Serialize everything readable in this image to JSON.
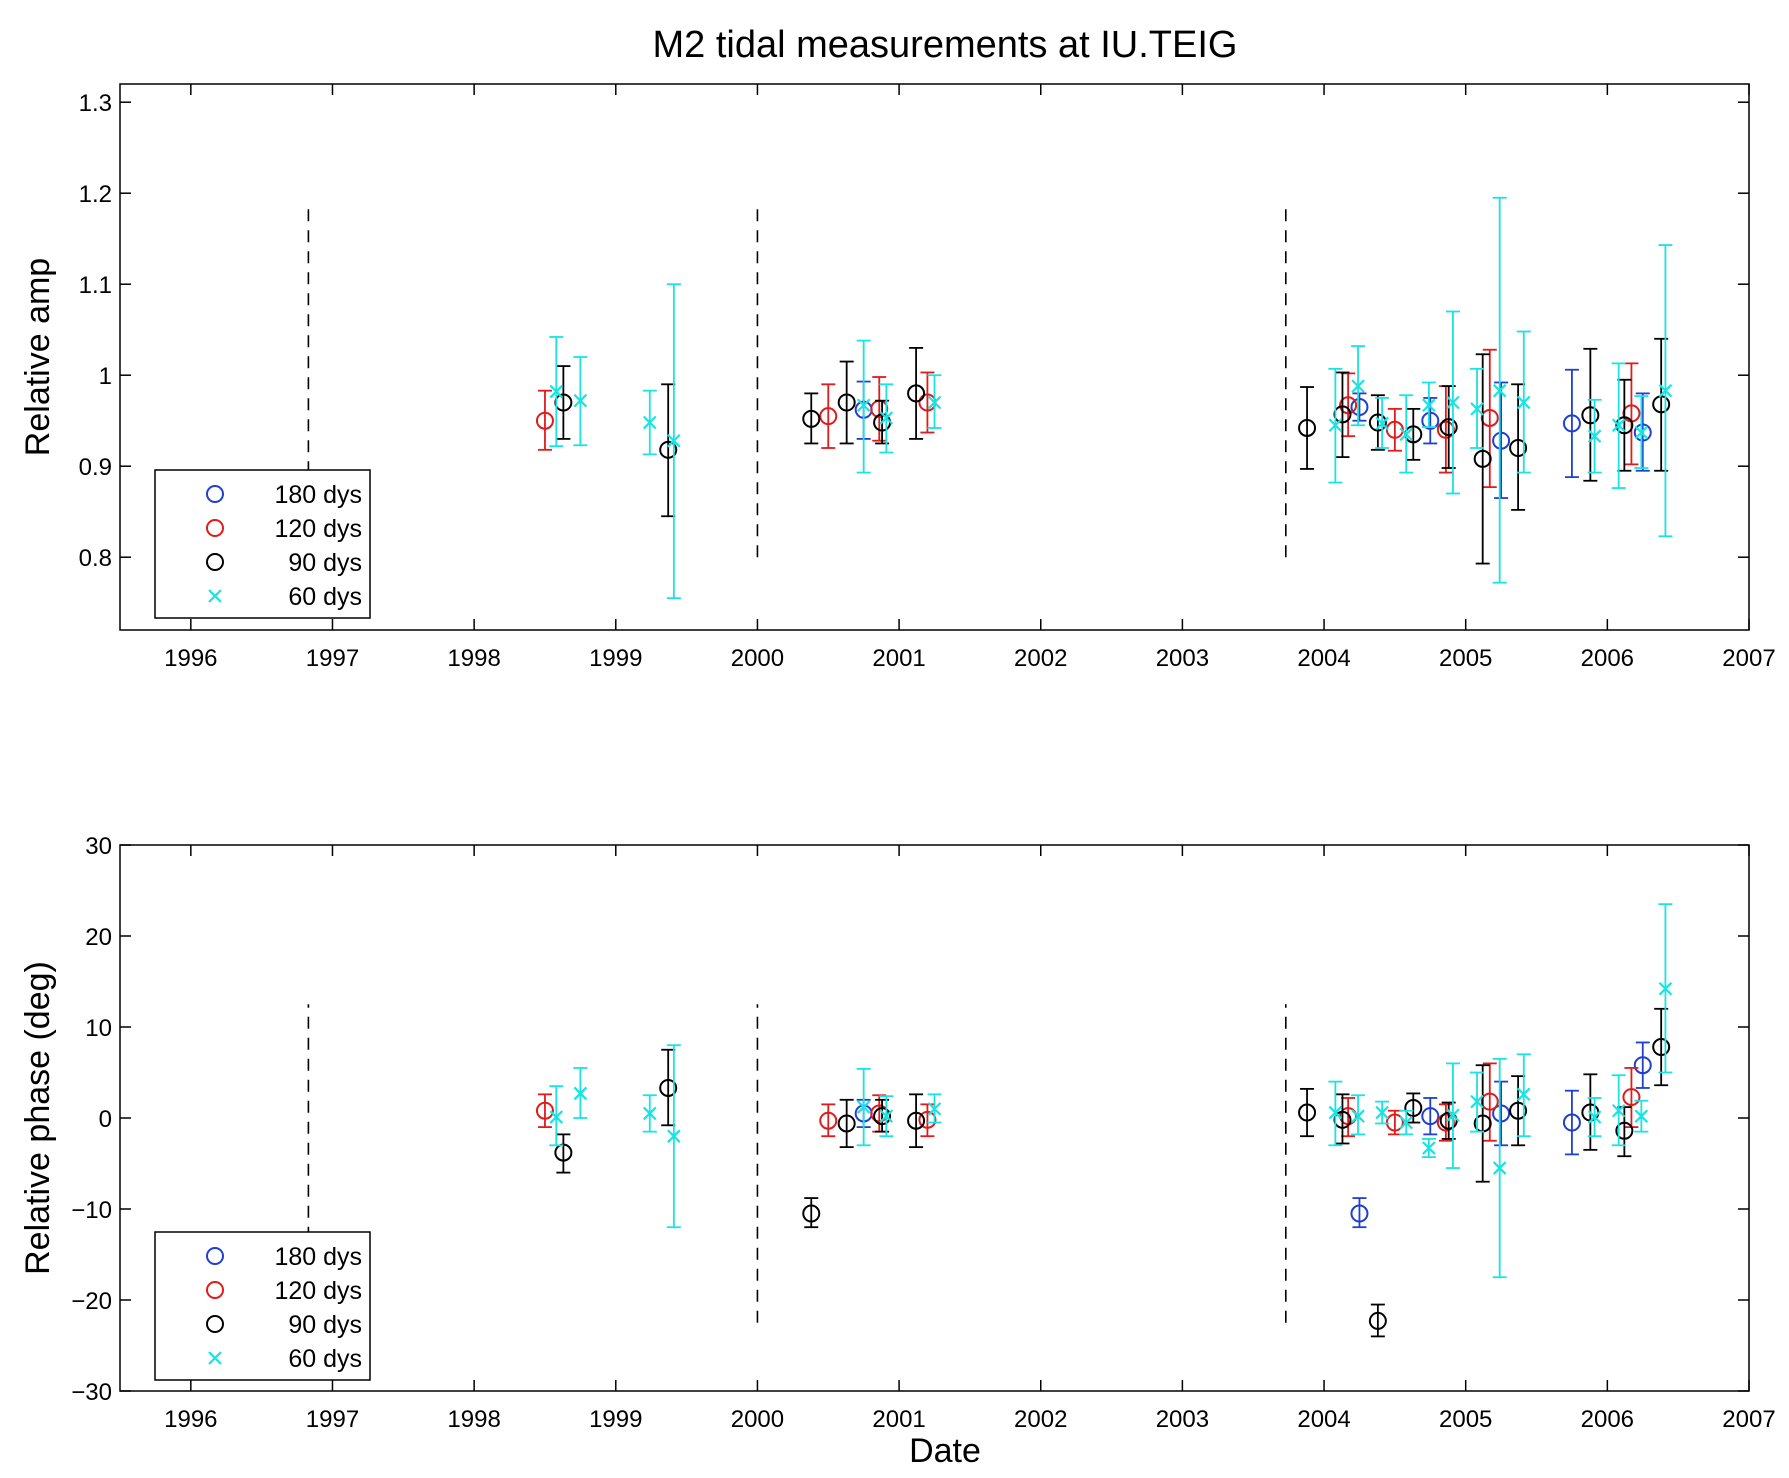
{
  "title": "M2 tidal measurements at IU.TEIG",
  "xlabel": "Date",
  "colors": {
    "180": "#1f3fcf",
    "120": "#e01b1b",
    "90": "#000000",
    "60": "#19e3e3"
  },
  "chart_data": [
    {
      "type": "scatter",
      "ylabel": "Relative amp",
      "xlim": [
        1995.5,
        2007
      ],
      "ylim": [
        0.72,
        1.32
      ],
      "x_ticks": [
        "1996",
        "1997",
        "1998",
        "1999",
        "2000",
        "2001",
        "2002",
        "2003",
        "2004",
        "2005",
        "2006",
        "2007"
      ],
      "y_ticks": [
        {
          "v": 0.8,
          "l": "0.8"
        },
        {
          "v": 0.9,
          "l": "0.9"
        },
        {
          "v": 1.0,
          "l": "1"
        },
        {
          "v": 1.1,
          "l": "1.1"
        },
        {
          "v": 1.2,
          "l": "1.2"
        },
        {
          "v": 1.3,
          "l": "1.3"
        }
      ],
      "vlines": [
        {
          "x": 1996.83,
          "y0": 0.8,
          "y1": 1.19
        },
        {
          "x": 2000.0,
          "y0": 0.8,
          "y1": 1.19
        },
        {
          "x": 2003.73,
          "y0": 0.8,
          "y1": 1.19
        }
      ],
      "legend": [
        "180 dys",
        "120 dys",
        "90 dys",
        "60 dys"
      ],
      "series": [
        {
          "name": "180 dys",
          "marker": "circle",
          "color_key": "180",
          "points": [
            {
              "x": 2000.75,
              "y": 0.962,
              "lo": 0.93,
              "hi": 0.993
            },
            {
              "x": 2004.25,
              "y": 0.965,
              "lo": 0.95,
              "hi": 0.98
            },
            {
              "x": 2004.75,
              "y": 0.95,
              "lo": 0.925,
              "hi": 0.975
            },
            {
              "x": 2005.25,
              "y": 0.928,
              "lo": 0.865,
              "hi": 0.992
            },
            {
              "x": 2005.75,
              "y": 0.947,
              "lo": 0.888,
              "hi": 1.006
            },
            {
              "x": 2006.25,
              "y": 0.937,
              "lo": 0.895,
              "hi": 0.98
            }
          ]
        },
        {
          "name": "120 dys",
          "marker": "circle",
          "color_key": "120",
          "points": [
            {
              "x": 1998.5,
              "y": 0.95,
              "lo": 0.918,
              "hi": 0.983
            },
            {
              "x": 2000.5,
              "y": 0.955,
              "lo": 0.92,
              "hi": 0.99
            },
            {
              "x": 2000.86,
              "y": 0.963,
              "lo": 0.928,
              "hi": 0.998
            },
            {
              "x": 2001.2,
              "y": 0.97,
              "lo": 0.937,
              "hi": 1.003
            },
            {
              "x": 2004.17,
              "y": 0.967,
              "lo": 0.933,
              "hi": 1.002
            },
            {
              "x": 2004.5,
              "y": 0.94,
              "lo": 0.917,
              "hi": 0.963
            },
            {
              "x": 2004.86,
              "y": 0.94,
              "lo": 0.893,
              "hi": 0.988
            },
            {
              "x": 2005.17,
              "y": 0.953,
              "lo": 0.877,
              "hi": 1.028
            },
            {
              "x": 2006.17,
              "y": 0.958,
              "lo": 0.902,
              "hi": 1.013
            }
          ]
        },
        {
          "name": "90 dys",
          "marker": "circle",
          "color_key": "90",
          "points": [
            {
              "x": 1998.63,
              "y": 0.97,
              "lo": 0.93,
              "hi": 1.01
            },
            {
              "x": 1999.37,
              "y": 0.918,
              "lo": 0.845,
              "hi": 0.99
            },
            {
              "x": 2000.38,
              "y": 0.952,
              "lo": 0.925,
              "hi": 0.98
            },
            {
              "x": 2000.63,
              "y": 0.97,
              "lo": 0.925,
              "hi": 1.015
            },
            {
              "x": 2000.88,
              "y": 0.948,
              "lo": 0.925,
              "hi": 0.972
            },
            {
              "x": 2001.12,
              "y": 0.98,
              "lo": 0.93,
              "hi": 1.03
            },
            {
              "x": 2003.88,
              "y": 0.942,
              "lo": 0.897,
              "hi": 0.987
            },
            {
              "x": 2004.13,
              "y": 0.957,
              "lo": 0.91,
              "hi": 1.003
            },
            {
              "x": 2004.38,
              "y": 0.948,
              "lo": 0.918,
              "hi": 0.978
            },
            {
              "x": 2004.63,
              "y": 0.935,
              "lo": 0.907,
              "hi": 0.963
            },
            {
              "x": 2004.88,
              "y": 0.943,
              "lo": 0.898,
              "hi": 0.988
            },
            {
              "x": 2005.12,
              "y": 0.908,
              "lo": 0.793,
              "hi": 1.023
            },
            {
              "x": 2005.37,
              "y": 0.92,
              "lo": 0.852,
              "hi": 0.99
            },
            {
              "x": 2005.88,
              "y": 0.956,
              "lo": 0.884,
              "hi": 1.029
            },
            {
              "x": 2006.12,
              "y": 0.945,
              "lo": 0.895,
              "hi": 0.995
            },
            {
              "x": 2006.38,
              "y": 0.968,
              "lo": 0.895,
              "hi": 1.04
            }
          ]
        },
        {
          "name": "60 dys",
          "marker": "x",
          "color_key": "60",
          "points": [
            {
              "x": 1998.58,
              "y": 0.982,
              "lo": 0.922,
              "hi": 1.042
            },
            {
              "x": 1998.75,
              "y": 0.972,
              "lo": 0.923,
              "hi": 1.02
            },
            {
              "x": 1999.24,
              "y": 0.948,
              "lo": 0.913,
              "hi": 0.983
            },
            {
              "x": 1999.41,
              "y": 0.928,
              "lo": 0.755,
              "hi": 1.1
            },
            {
              "x": 2000.75,
              "y": 0.967,
              "lo": 0.893,
              "hi": 1.038
            },
            {
              "x": 2000.91,
              "y": 0.953,
              "lo": 0.915,
              "hi": 0.99
            },
            {
              "x": 2001.25,
              "y": 0.97,
              "lo": 0.942,
              "hi": 1.0
            },
            {
              "x": 2004.08,
              "y": 0.945,
              "lo": 0.882,
              "hi": 1.007
            },
            {
              "x": 2004.24,
              "y": 0.988,
              "lo": 0.945,
              "hi": 1.032
            },
            {
              "x": 2004.41,
              "y": 0.947,
              "lo": 0.92,
              "hi": 0.975
            },
            {
              "x": 2004.58,
              "y": 0.935,
              "lo": 0.893,
              "hi": 0.978
            },
            {
              "x": 2004.74,
              "y": 0.967,
              "lo": 0.943,
              "hi": 0.992
            },
            {
              "x": 2004.91,
              "y": 0.97,
              "lo": 0.87,
              "hi": 1.07
            },
            {
              "x": 2005.08,
              "y": 0.963,
              "lo": 0.92,
              "hi": 1.007
            },
            {
              "x": 2005.24,
              "y": 0.983,
              "lo": 0.772,
              "hi": 1.195
            },
            {
              "x": 2005.41,
              "y": 0.97,
              "lo": 0.893,
              "hi": 1.048
            },
            {
              "x": 2005.91,
              "y": 0.933,
              "lo": 0.893,
              "hi": 0.973
            },
            {
              "x": 2006.08,
              "y": 0.945,
              "lo": 0.876,
              "hi": 1.013
            },
            {
              "x": 2006.24,
              "y": 0.937,
              "lo": 0.898,
              "hi": 0.977
            },
            {
              "x": 2006.41,
              "y": 0.983,
              "lo": 0.823,
              "hi": 1.143
            }
          ]
        }
      ]
    },
    {
      "type": "scatter",
      "ylabel": "Relative phase (deg)",
      "xlim": [
        1995.5,
        2007
      ],
      "ylim": [
        -30,
        30
      ],
      "x_ticks": [
        "1996",
        "1997",
        "1998",
        "1999",
        "2000",
        "2001",
        "2002",
        "2003",
        "2004",
        "2005",
        "2006",
        "2007"
      ],
      "y_ticks": [
        {
          "v": -30,
          "l": "−30"
        },
        {
          "v": -20,
          "l": "−20"
        },
        {
          "v": -10,
          "l": "−10"
        },
        {
          "v": 0,
          "l": "0"
        },
        {
          "v": 10,
          "l": "10"
        },
        {
          "v": 20,
          "l": "20"
        },
        {
          "v": 30,
          "l": "30"
        }
      ],
      "vlines": [
        {
          "x": 1996.83,
          "y0": -22.5,
          "y1": 12.5
        },
        {
          "x": 2000.0,
          "y0": -22.5,
          "y1": 12.5
        },
        {
          "x": 2003.73,
          "y0": -22.5,
          "y1": 12.5
        }
      ],
      "legend": [
        "180 dys",
        "120 dys",
        "90 dys",
        "60 dys"
      ],
      "series": [
        {
          "name": "180 dys",
          "marker": "circle",
          "color_key": "180",
          "points": [
            {
              "x": 2000.75,
              "y": 0.5,
              "lo": -1.0,
              "hi": 2.0
            },
            {
              "x": 2004.25,
              "y": -10.5,
              "lo": -12.0,
              "hi": -8.8
            },
            {
              "x": 2004.75,
              "y": 0.2,
              "lo": -1.8,
              "hi": 2.2
            },
            {
              "x": 2005.25,
              "y": 0.5,
              "lo": -3.0,
              "hi": 4.0
            },
            {
              "x": 2005.75,
              "y": -0.5,
              "lo": -4.0,
              "hi": 3.0
            },
            {
              "x": 2006.25,
              "y": 5.8,
              "lo": 3.3,
              "hi": 8.3
            }
          ]
        },
        {
          "name": "120 dys",
          "marker": "circle",
          "color_key": "120",
          "points": [
            {
              "x": 1998.5,
              "y": 0.8,
              "lo": -1.0,
              "hi": 2.6
            },
            {
              "x": 2000.5,
              "y": -0.3,
              "lo": -2.0,
              "hi": 1.5
            },
            {
              "x": 2000.86,
              "y": 0.5,
              "lo": -1.5,
              "hi": 2.5
            },
            {
              "x": 2001.2,
              "y": -0.2,
              "lo": -2.0,
              "hi": 1.5
            },
            {
              "x": 2004.17,
              "y": 0.2,
              "lo": -2.0,
              "hi": 2.2
            },
            {
              "x": 2004.5,
              "y": -0.5,
              "lo": -1.8,
              "hi": 0.8
            },
            {
              "x": 2004.86,
              "y": -0.5,
              "lo": -2.5,
              "hi": 1.5
            },
            {
              "x": 2005.17,
              "y": 1.8,
              "lo": -2.5,
              "hi": 6.0
            },
            {
              "x": 2006.17,
              "y": 2.3,
              "lo": -1.0,
              "hi": 5.5
            }
          ]
        },
        {
          "name": "90 dys",
          "marker": "circle",
          "color_key": "90",
          "points": [
            {
              "x": 1998.63,
              "y": -3.8,
              "lo": -6.0,
              "hi": -1.8
            },
            {
              "x": 1999.37,
              "y": 3.3,
              "lo": -0.8,
              "hi": 7.5
            },
            {
              "x": 2000.38,
              "y": -10.5,
              "lo": -12.0,
              "hi": -8.8
            },
            {
              "x": 2000.63,
              "y": -0.6,
              "lo": -3.2,
              "hi": 2.0
            },
            {
              "x": 2000.88,
              "y": 0.2,
              "lo": -1.5,
              "hi": 2.0
            },
            {
              "x": 2001.12,
              "y": -0.3,
              "lo": -3.2,
              "hi": 2.6
            },
            {
              "x": 2003.88,
              "y": 0.6,
              "lo": -2.0,
              "hi": 3.2
            },
            {
              "x": 2004.13,
              "y": -0.2,
              "lo": -2.8,
              "hi": 2.6
            },
            {
              "x": 2004.38,
              "y": -22.3,
              "lo": -24.0,
              "hi": -20.5
            },
            {
              "x": 2004.63,
              "y": 1.1,
              "lo": -0.5,
              "hi": 2.7
            },
            {
              "x": 2004.88,
              "y": -0.3,
              "lo": -2.3,
              "hi": 1.7
            },
            {
              "x": 2005.12,
              "y": -0.6,
              "lo": -7.0,
              "hi": 5.8
            },
            {
              "x": 2005.37,
              "y": 0.8,
              "lo": -3.0,
              "hi": 4.6
            },
            {
              "x": 2005.88,
              "y": 0.6,
              "lo": -3.5,
              "hi": 4.8
            },
            {
              "x": 2006.12,
              "y": -1.4,
              "lo": -4.2,
              "hi": 1.2
            },
            {
              "x": 2006.38,
              "y": 7.8,
              "lo": 3.6,
              "hi": 12.0
            }
          ]
        },
        {
          "name": "60 dys",
          "marker": "x",
          "color_key": "60",
          "points": [
            {
              "x": 1998.58,
              "y": 0.1,
              "lo": -3.0,
              "hi": 3.5
            },
            {
              "x": 1998.75,
              "y": 2.7,
              "lo": 0.0,
              "hi": 5.5
            },
            {
              "x": 1999.24,
              "y": 0.5,
              "lo": -1.5,
              "hi": 2.5
            },
            {
              "x": 1999.41,
              "y": -2.0,
              "lo": -12.0,
              "hi": 8.0
            },
            {
              "x": 2000.75,
              "y": 1.2,
              "lo": -3.0,
              "hi": 5.4
            },
            {
              "x": 2000.91,
              "y": 0.2,
              "lo": -2.0,
              "hi": 2.4
            },
            {
              "x": 2001.25,
              "y": 1.0,
              "lo": -0.5,
              "hi": 2.6
            },
            {
              "x": 2004.08,
              "y": 0.6,
              "lo": -3.0,
              "hi": 4.0
            },
            {
              "x": 2004.24,
              "y": 0.2,
              "lo": -1.8,
              "hi": 2.5
            },
            {
              "x": 2004.41,
              "y": 0.6,
              "lo": -0.6,
              "hi": 1.8
            },
            {
              "x": 2004.58,
              "y": -0.5,
              "lo": -1.8,
              "hi": 0.8
            },
            {
              "x": 2004.74,
              "y": -3.3,
              "lo": -4.3,
              "hi": -2.3
            },
            {
              "x": 2004.91,
              "y": 0.3,
              "lo": -5.5,
              "hi": 6.0
            },
            {
              "x": 2005.08,
              "y": 1.8,
              "lo": -1.5,
              "hi": 5.0
            },
            {
              "x": 2005.24,
              "y": -5.5,
              "lo": -17.5,
              "hi": 6.5
            },
            {
              "x": 2005.41,
              "y": 2.6,
              "lo": -2.0,
              "hi": 7.0
            },
            {
              "x": 2005.91,
              "y": 0.1,
              "lo": -2.0,
              "hi": 2.2
            },
            {
              "x": 2006.08,
              "y": 0.8,
              "lo": -3.0,
              "hi": 4.7
            },
            {
              "x": 2006.24,
              "y": 0.2,
              "lo": -1.5,
              "hi": 1.9
            },
            {
              "x": 2006.41,
              "y": 14.2,
              "lo": 5.0,
              "hi": 23.5
            }
          ]
        }
      ]
    }
  ]
}
